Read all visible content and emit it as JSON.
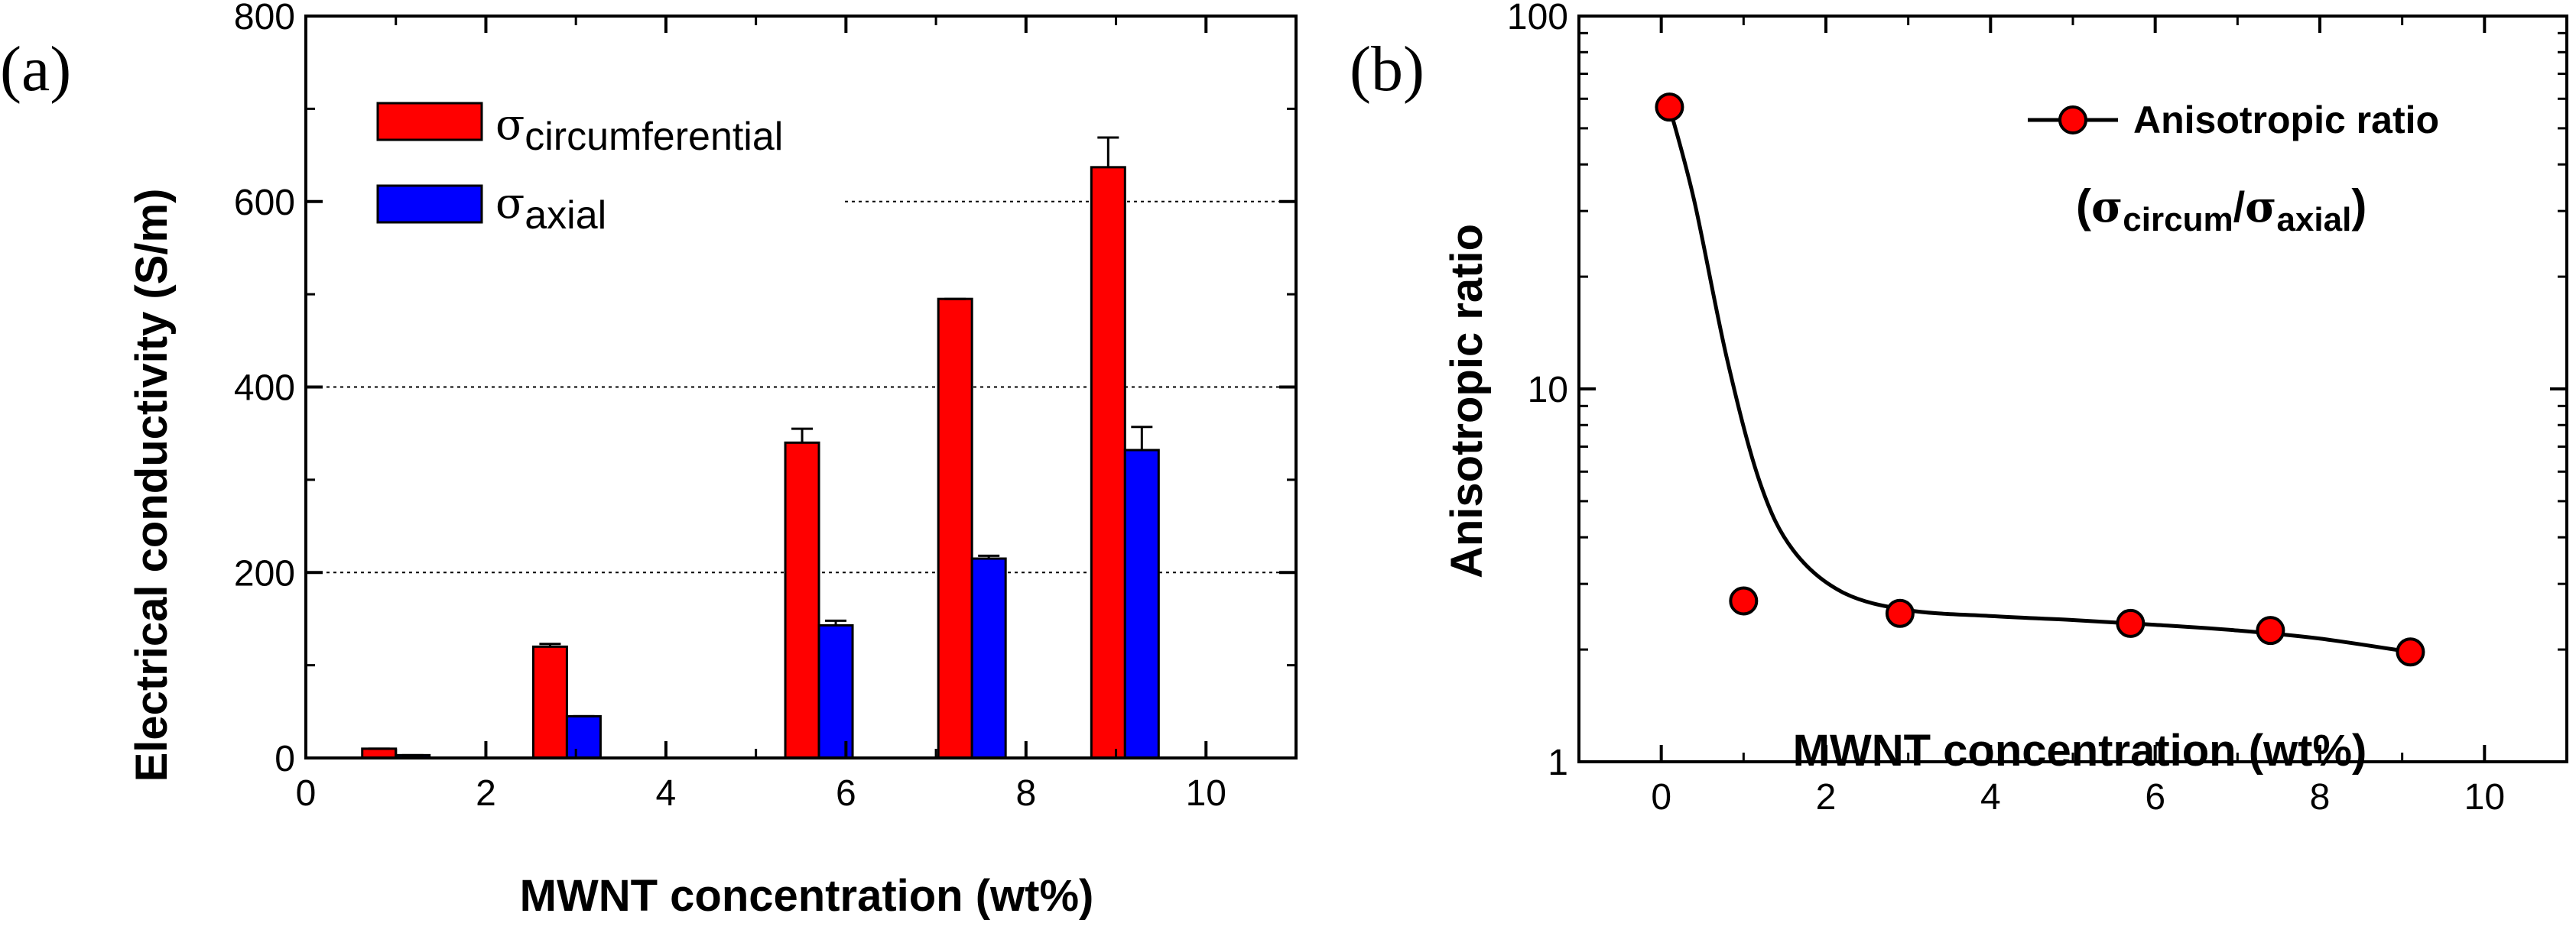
{
  "panels": {
    "a": {
      "letter": "(a)"
    },
    "b": {
      "letter": "(b)"
    }
  },
  "chart_data": [
    {
      "type": "bar",
      "panel": "(a)",
      "xlabel": "MWNT concentration (wt%)",
      "ylabel": "Electrical conductivity (S/m)",
      "xlim": [
        0,
        11
      ],
      "ylim": [
        0,
        800
      ],
      "xticks": [
        0,
        2,
        4,
        6,
        8,
        10
      ],
      "yticks": [
        0,
        200,
        400,
        600,
        800
      ],
      "grid": "horizontal dotted at 200, 400, 600",
      "legend_position": "top-left",
      "categories": [
        1,
        2.9,
        5.7,
        7.4,
        9.1
      ],
      "series": [
        {
          "name": "σcircumferential",
          "symbol": "σ",
          "subscript": "circumferential",
          "color": "#ff0000",
          "values": [
            10,
            120,
            340,
            495,
            637
          ],
          "errors": [
            0,
            3,
            15,
            0,
            32
          ]
        },
        {
          "name": "σaxial",
          "symbol": "σ",
          "subscript": "axial",
          "color": "#0000ff",
          "values": [
            3,
            45,
            143,
            215,
            332
          ],
          "errors": [
            0,
            0,
            5,
            3,
            25
          ]
        }
      ]
    },
    {
      "type": "line",
      "panel": "(b)",
      "xlabel": "MWNT concentration (wt%)",
      "ylabel": "Anisotropic ratio",
      "xlim": [
        -1,
        11
      ],
      "ylim": [
        1,
        100
      ],
      "yscale": "log",
      "xticks": [
        0,
        2,
        4,
        6,
        8,
        10
      ],
      "yticks": [
        1,
        10,
        100
      ],
      "legend_position": "top-right",
      "series": [
        {
          "name": "Anisotropic ratio",
          "color": "#ff0000",
          "x": [
            0.1,
            1.0,
            2.9,
            5.7,
            7.4,
            9.1
          ],
          "y": [
            57,
            2.7,
            2.5,
            2.35,
            2.25,
            1.97
          ]
        }
      ],
      "fit_curve": {
        "x": [
          0.1,
          0.4,
          0.8,
          1.2,
          1.6,
          2.2,
          3.0,
          4.0,
          5.0,
          6.0,
          7.0,
          8.0,
          9.1
        ],
        "y": [
          57,
          32,
          12,
          5.6,
          3.7,
          2.85,
          2.55,
          2.46,
          2.4,
          2.33,
          2.25,
          2.14,
          1.97
        ]
      },
      "annotation": {
        "open": "(",
        "sigma1": "σ",
        "sub1": "circum",
        "slash": "/",
        "sigma2": "σ",
        "sub2": "axial",
        "close": ")"
      }
    }
  ]
}
